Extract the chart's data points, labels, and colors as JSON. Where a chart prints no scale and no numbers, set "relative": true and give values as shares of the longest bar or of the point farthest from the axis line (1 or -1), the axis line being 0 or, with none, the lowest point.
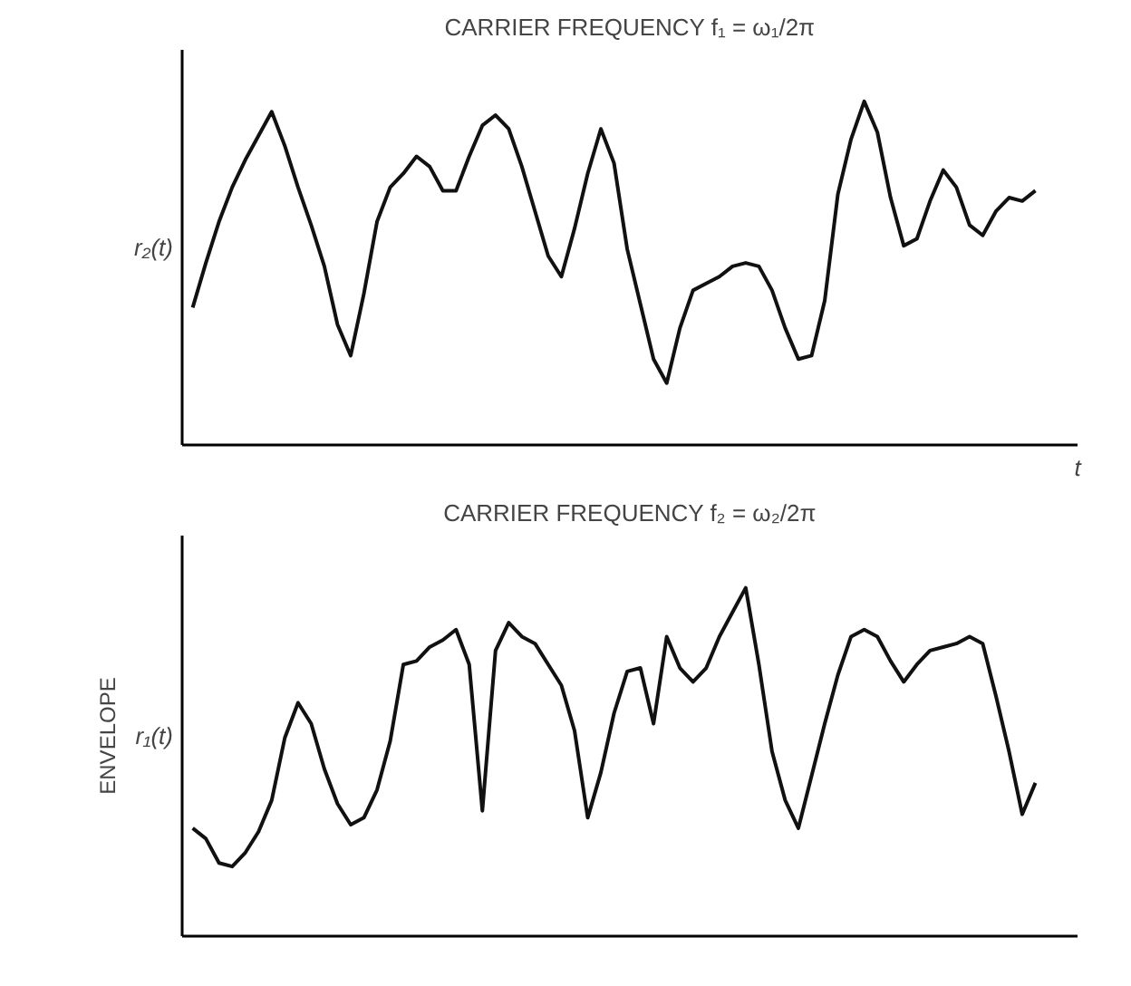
{
  "chart_data": [
    {
      "type": "line",
      "title": "CARRIER FREQUENCY f₁ = ω₁/2π",
      "xlabel": "t",
      "ylabel": "r₂(t)",
      "relative": true,
      "line_style": "solid",
      "categories": [
        null,
        null,
        null,
        null,
        null,
        null,
        null,
        null,
        null,
        null,
        null,
        null,
        null,
        null,
        null,
        null,
        null,
        null,
        null,
        null,
        null,
        null,
        null,
        null,
        null,
        null,
        null,
        null,
        null,
        null,
        null,
        null,
        null,
        null,
        null,
        null,
        null,
        null,
        null,
        null,
        null,
        null,
        null,
        null,
        null,
        null,
        null,
        null,
        null,
        null,
        null,
        null,
        null,
        null,
        null,
        null,
        null,
        null,
        null,
        null,
        null,
        null,
        null,
        null,
        null
      ],
      "series": [
        {
          "color": "#111111",
          "values": [
            0.4,
            0.53,
            0.65,
            0.75,
            0.83,
            0.9,
            0.97,
            0.87,
            0.75,
            0.64,
            0.52,
            0.35,
            0.26,
            0.44,
            0.65,
            0.75,
            0.79,
            0.84,
            0.81,
            0.74,
            0.74,
            0.84,
            0.93,
            0.96,
            0.92,
            0.81,
            0.68,
            0.55,
            0.49,
            0.63,
            0.79,
            0.92,
            0.82,
            0.57,
            0.41,
            0.25,
            0.18,
            0.34,
            0.45,
            0.47,
            0.49,
            0.52,
            0.53,
            0.52,
            0.45,
            0.34,
            0.25,
            0.26,
            0.42,
            0.73,
            0.89,
            1.0,
            0.91,
            0.72,
            0.58,
            0.6,
            0.71,
            0.8,
            0.75,
            0.64,
            0.61,
            0.68,
            0.72,
            0.71,
            0.74
          ]
        }
      ]
    },
    {
      "type": "line",
      "title": "CARRIER FREQUENCY f₂ = ω₂/2π",
      "ylabel": "r₁(t)",
      "annotations": [
        "ENVELOPE"
      ],
      "relative": true,
      "line_style": "solid",
      "categories": [
        null,
        null,
        null,
        null,
        null,
        null,
        null,
        null,
        null,
        null,
        null,
        null,
        null,
        null,
        null,
        null,
        null,
        null,
        null,
        null,
        null,
        null,
        null,
        null,
        null,
        null,
        null,
        null,
        null,
        null,
        null,
        null,
        null,
        null,
        null,
        null,
        null,
        null,
        null,
        null,
        null,
        null,
        null,
        null,
        null,
        null,
        null,
        null,
        null,
        null,
        null,
        null,
        null,
        null,
        null,
        null,
        null,
        null,
        null,
        null,
        null,
        null,
        null,
        null,
        null
      ],
      "series": [
        {
          "color": "#111111",
          "values": [
            0.31,
            0.28,
            0.21,
            0.2,
            0.24,
            0.3,
            0.39,
            0.57,
            0.67,
            0.61,
            0.48,
            0.38,
            0.32,
            0.34,
            0.42,
            0.56,
            0.78,
            0.79,
            0.83,
            0.85,
            0.88,
            0.78,
            0.36,
            0.82,
            0.9,
            0.86,
            0.84,
            0.78,
            0.72,
            0.59,
            0.34,
            0.47,
            0.64,
            0.76,
            0.77,
            0.61,
            0.86,
            0.77,
            0.73,
            0.77,
            0.86,
            0.93,
            1.0,
            0.78,
            0.53,
            0.39,
            0.31,
            0.46,
            0.61,
            0.75,
            0.86,
            0.88,
            0.86,
            0.79,
            0.73,
            0.78,
            0.82,
            0.83,
            0.84,
            0.86,
            0.84,
            0.69,
            0.53,
            0.35,
            0.44
          ]
        }
      ]
    }
  ]
}
